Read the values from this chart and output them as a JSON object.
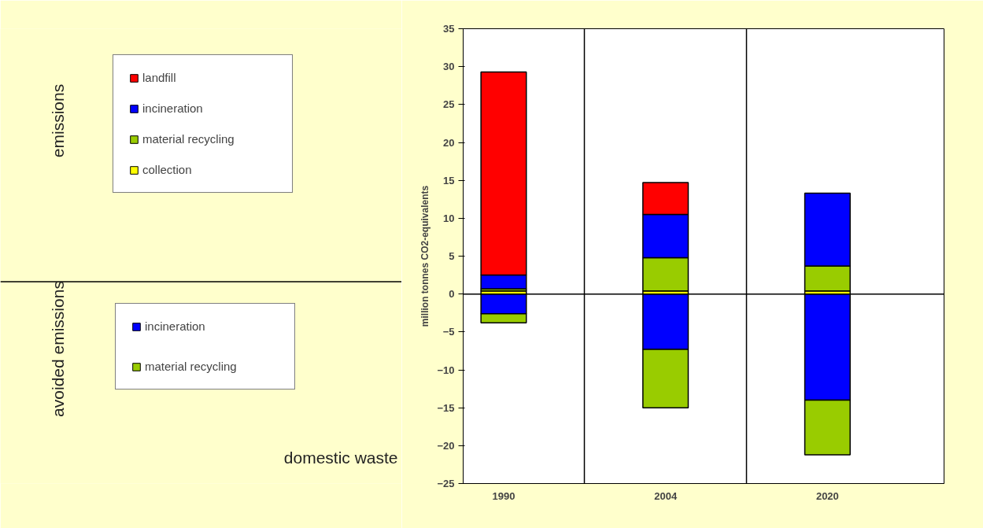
{
  "chart_data": {
    "type": "bar",
    "stacked": true,
    "ylabel": "million tonnes CO2-equivalents",
    "xlabel": "domestic waste",
    "categories": [
      "1990",
      "2004",
      "2020"
    ],
    "series": [
      {
        "name": "collection",
        "color": "#ffff00",
        "values": [
          0.4,
          0.4,
          0.4
        ]
      },
      {
        "name": "material recycling",
        "color": "#99cc00",
        "values": [
          0.3,
          4.4,
          3.3
        ]
      },
      {
        "name": "incineration",
        "color": "#0000ff",
        "values": [
          1.8,
          5.7,
          9.6
        ]
      },
      {
        "name": "landfill",
        "color": "#ff0000",
        "values": [
          26.8,
          4.2,
          null
        ]
      },
      {
        "name": "incineration",
        "color": "#0000ff",
        "values": [
          -2.6,
          -7.3,
          -14.0
        ]
      },
      {
        "name": "material recycling",
        "color": "#99cc00",
        "values": [
          -1.2,
          -7.7,
          -7.2
        ]
      }
    ],
    "ylim": [
      -25,
      35
    ],
    "yticks": [
      -25,
      -20,
      -15,
      -10,
      -5,
      0,
      5,
      10,
      15,
      20,
      25,
      30,
      35
    ],
    "ref_lines": [
      {
        "axis": "y",
        "value": 0,
        "color": "#000000"
      }
    ],
    "grid": "x",
    "legend": "left",
    "annotations": [
      "emissions",
      "avoided emissions"
    ]
  }
}
